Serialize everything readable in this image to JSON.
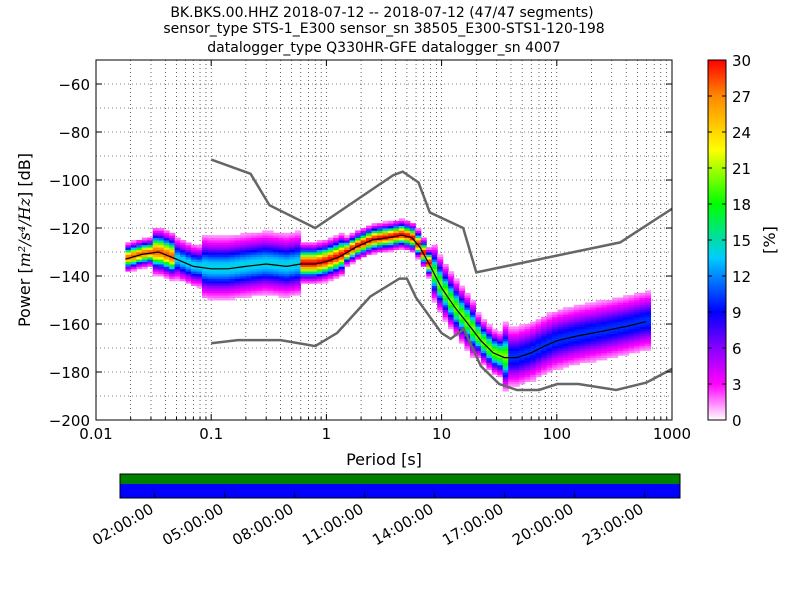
{
  "title": {
    "line1": "BK.BKS.00.HHZ   2018-07-12 -- 2018-07-12  (47/47 segments)",
    "line2": "sensor_type STS-1_E300 sensor_sn 38505_E300-STS1-120-198",
    "line3": "datalogger_type Q330HR-GFE datalogger_sn 4007"
  },
  "chart_data": {
    "type": "heatmap",
    "title": "BK.BKS.00.HHZ   2018-07-12 -- 2018-07-12  (47/47 segments)",
    "xlabel": "Period [s]",
    "ylabel_prefix": "Power [",
    "ylabel_unit": "m²/s⁴/Hz",
    "ylabel_suffix": "] [dB]",
    "x_scale": "log",
    "xlim": [
      0.01,
      1000
    ],
    "ylim": [
      -200,
      -50
    ],
    "x_ticks": [
      0.01,
      0.1,
      1,
      10,
      100,
      1000
    ],
    "x_tick_labels": [
      "0.01",
      "0.1",
      "1",
      "10",
      "100",
      "1000"
    ],
    "y_ticks": [
      -200,
      -180,
      -160,
      -140,
      -120,
      -100,
      -80,
      -60
    ],
    "y_tick_labels": [
      "−200",
      "−180",
      "−160",
      "−140",
      "−120",
      "−100",
      "−80",
      "−60"
    ],
    "grid": true,
    "colorbar": {
      "label": "[%]",
      "ticks": [
        0,
        3,
        6,
        9,
        12,
        15,
        18,
        21,
        24,
        27,
        30
      ],
      "tick_labels": [
        "0",
        "3",
        "6",
        "9",
        "12",
        "15",
        "18",
        "21",
        "24",
        "27",
        "30"
      ],
      "range": [
        0,
        30
      ]
    },
    "nlnm": {
      "periods": [
        0.1,
        0.17,
        0.4,
        0.8,
        1.24,
        2.4,
        4.3,
        5.0,
        6.0,
        10.0,
        12.0,
        15.6,
        21.9,
        31.6,
        45.0,
        70.0,
        101.0,
        154.0,
        328.0,
        600.0,
        1000.0
      ],
      "values": [
        -168.0,
        -166.7,
        -166.7,
        -169.2,
        -163.7,
        -148.6,
        -141.1,
        -141.1,
        -149.0,
        -163.8,
        -166.2,
        -162.1,
        -177.5,
        -185.0,
        -187.5,
        -187.5,
        -185.0,
        -185.0,
        -187.5,
        -184.4,
        -178.7
      ]
    },
    "nhnm": {
      "periods": [
        0.1,
        0.22,
        0.32,
        0.8,
        3.8,
        4.6,
        6.3,
        7.9,
        15.4,
        20.0,
        354.8,
        1000.0
      ],
      "values": [
        -91.5,
        -97.4,
        -110.5,
        -120.0,
        -98.0,
        -96.5,
        -101.0,
        -113.5,
        -120.0,
        -138.5,
        -126.0,
        -112.0
      ]
    },
    "mode_curve": {
      "periods": [
        0.018,
        0.025,
        0.035,
        0.05,
        0.07,
        0.1,
        0.14,
        0.2,
        0.3,
        0.45,
        0.6,
        0.8,
        1.0,
        1.3,
        1.8,
        2.5,
        3.5,
        4.5,
        5.5,
        6.5,
        8,
        10,
        13,
        17,
        22,
        28,
        35,
        45,
        60,
        80,
        100,
        150,
        250,
        400,
        600
      ],
      "values": [
        -133,
        -131,
        -130,
        -133,
        -136,
        -137,
        -137,
        -136,
        -135,
        -136,
        -135,
        -135,
        -134,
        -132,
        -128,
        -125,
        -124,
        -123,
        -124,
        -128,
        -136,
        -145,
        -153,
        -160,
        -167,
        -172,
        -174,
        -174,
        -172,
        -169,
        -167,
        -165,
        -163,
        -161,
        -159
      ]
    },
    "spectrogram": {
      "x_tick_labels": [
        "02:00:00",
        "05:00:00",
        "08:00:00",
        "11:00:00",
        "14:00:00",
        "17:00:00",
        "20:00:00",
        "23:00:00"
      ],
      "top_color": "#008000",
      "bottom_color": "#0000ff"
    }
  },
  "colors": {
    "noise_model": "#666666",
    "mode_curve": "#000000",
    "grid": "#000000"
  }
}
